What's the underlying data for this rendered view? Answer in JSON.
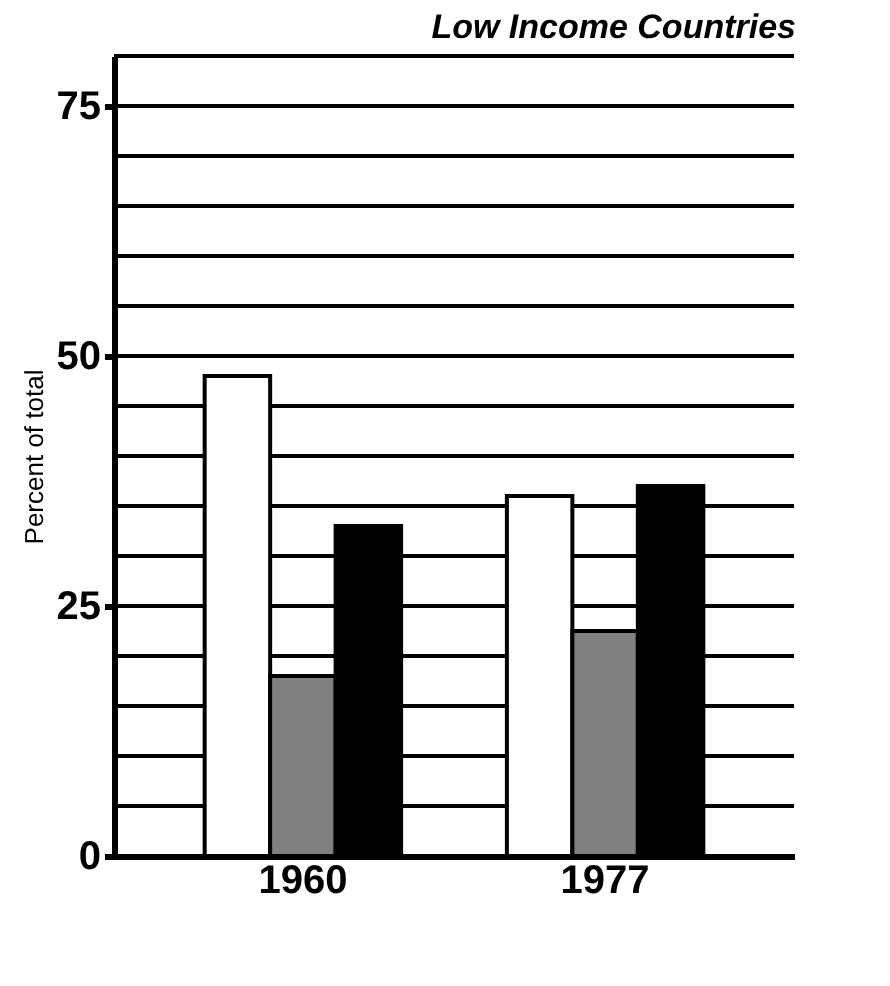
{
  "chart_data": {
    "type": "bar",
    "title": "Low Income Countries",
    "ylabel": "Percent of total",
    "categories": [
      "1960",
      "1977"
    ],
    "series": [
      {
        "color": "#ffffff",
        "values": [
          48,
          36
        ]
      },
      {
        "color": "#808080",
        "values": [
          18,
          22.5
        ]
      },
      {
        "color": "#000000",
        "values": [
          33,
          37
        ]
      }
    ],
    "ylim": [
      0,
      80
    ],
    "yticks": [
      0,
      25,
      50,
      75
    ],
    "grid": "y"
  }
}
